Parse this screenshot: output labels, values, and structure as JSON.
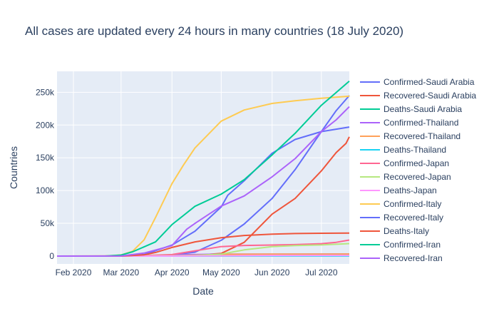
{
  "chart_data": {
    "type": "line",
    "title": "All cases are updated every 24 hours in many countries (18 July 2020)",
    "xlabel": "Date",
    "ylabel": "Countries",
    "xlim": [
      "2020-01-22",
      "2020-07-18"
    ],
    "ylim": [
      -12000,
      282000
    ],
    "x_ticks": [
      {
        "date": "2020-02-01",
        "label": "Feb 2020"
      },
      {
        "date": "2020-03-01",
        "label": "Mar 2020"
      },
      {
        "date": "2020-04-01",
        "label": "Apr 2020"
      },
      {
        "date": "2020-05-01",
        "label": "May 2020"
      },
      {
        "date": "2020-06-01",
        "label": "Jun 2020"
      },
      {
        "date": "2020-07-01",
        "label": "Jul 2020"
      }
    ],
    "y_ticks": [
      {
        "value": 0,
        "label": "0"
      },
      {
        "value": 50000,
        "label": "50k"
      },
      {
        "value": 100000,
        "label": "100k"
      },
      {
        "value": 150000,
        "label": "150k"
      },
      {
        "value": 200000,
        "label": "200k"
      },
      {
        "value": 250000,
        "label": "250k"
      }
    ],
    "grid": true,
    "legend_position": "right",
    "series": [
      {
        "name": "Confirmed-Saudi Arabia",
        "color": "#636efa",
        "points": [
          [
            "2020-01-22",
            0
          ],
          [
            "2020-03-01",
            0
          ],
          [
            "2020-03-15",
            100
          ],
          [
            "2020-04-01",
            1700
          ],
          [
            "2020-04-15",
            6000
          ],
          [
            "2020-05-01",
            24000
          ],
          [
            "2020-05-15",
            49000
          ],
          [
            "2020-06-01",
            88000
          ],
          [
            "2020-06-15",
            132000
          ],
          [
            "2020-07-01",
            190000
          ],
          [
            "2020-07-10",
            222000
          ],
          [
            "2020-07-18",
            245000
          ]
        ]
      },
      {
        "name": "Recovered-Saudi Arabia",
        "color": "#ef553b",
        "points": [
          [
            "2020-01-22",
            0
          ],
          [
            "2020-03-10",
            0
          ],
          [
            "2020-04-01",
            300
          ],
          [
            "2020-04-15",
            1100
          ],
          [
            "2020-05-01",
            4000
          ],
          [
            "2020-05-15",
            21000
          ],
          [
            "2020-06-01",
            64000
          ],
          [
            "2020-06-15",
            88000
          ],
          [
            "2020-07-01",
            130000
          ],
          [
            "2020-07-10",
            158000
          ],
          [
            "2020-07-16",
            172000
          ],
          [
            "2020-07-18",
            182000
          ]
        ]
      },
      {
        "name": "Deaths-Saudi Arabia",
        "color": "#00cc96",
        "points": [
          [
            "2020-01-22",
            0
          ],
          [
            "2020-03-20",
            0
          ],
          [
            "2020-04-01",
            20
          ],
          [
            "2020-05-01",
            170
          ],
          [
            "2020-06-01",
            500
          ],
          [
            "2020-07-01",
            1700
          ],
          [
            "2020-07-18",
            2400
          ]
        ]
      },
      {
        "name": "Confirmed-Thailand",
        "color": "#ab63fa",
        "points": [
          [
            "2020-01-22",
            4
          ],
          [
            "2020-03-01",
            40
          ],
          [
            "2020-03-15",
            110
          ],
          [
            "2020-04-01",
            1800
          ],
          [
            "2020-05-01",
            2950
          ],
          [
            "2020-06-01",
            3080
          ],
          [
            "2020-07-01",
            3170
          ],
          [
            "2020-07-18",
            3250
          ]
        ]
      },
      {
        "name": "Recovered-Thailand",
        "color": "#ffa15a",
        "points": [
          [
            "2020-01-22",
            0
          ],
          [
            "2020-03-01",
            30
          ],
          [
            "2020-04-01",
            200
          ],
          [
            "2020-05-01",
            2700
          ],
          [
            "2020-06-01",
            2970
          ],
          [
            "2020-07-01",
            3080
          ],
          [
            "2020-07-18",
            3100
          ]
        ]
      },
      {
        "name": "Deaths-Thailand",
        "color": "#19d3f3",
        "points": [
          [
            "2020-01-22",
            0
          ],
          [
            "2020-03-01",
            1
          ],
          [
            "2020-04-01",
            10
          ],
          [
            "2020-05-01",
            54
          ],
          [
            "2020-06-01",
            57
          ],
          [
            "2020-07-18",
            58
          ]
        ]
      },
      {
        "name": "Confirmed-Japan",
        "color": "#ff6692",
        "points": [
          [
            "2020-01-22",
            2
          ],
          [
            "2020-03-01",
            250
          ],
          [
            "2020-03-15",
            800
          ],
          [
            "2020-04-01",
            2300
          ],
          [
            "2020-04-15",
            8000
          ],
          [
            "2020-05-01",
            14500
          ],
          [
            "2020-05-15",
            16200
          ],
          [
            "2020-06-01",
            16900
          ],
          [
            "2020-06-15",
            17500
          ],
          [
            "2020-07-01",
            18900
          ],
          [
            "2020-07-10",
            21000
          ],
          [
            "2020-07-18",
            24500
          ]
        ]
      },
      {
        "name": "Recovered-Japan",
        "color": "#b6e880",
        "points": [
          [
            "2020-01-22",
            0
          ],
          [
            "2020-03-15",
            150
          ],
          [
            "2020-04-01",
            500
          ],
          [
            "2020-04-15",
            900
          ],
          [
            "2020-05-01",
            3000
          ],
          [
            "2020-05-15",
            9500
          ],
          [
            "2020-06-01",
            14500
          ],
          [
            "2020-06-15",
            16000
          ],
          [
            "2020-07-01",
            17000
          ],
          [
            "2020-07-18",
            19000
          ]
        ]
      },
      {
        "name": "Deaths-Japan",
        "color": "#ff97ff",
        "points": [
          [
            "2020-01-22",
            0
          ],
          [
            "2020-03-01",
            6
          ],
          [
            "2020-04-01",
            60
          ],
          [
            "2020-05-01",
            450
          ],
          [
            "2020-06-01",
            900
          ],
          [
            "2020-07-01",
            975
          ],
          [
            "2020-07-18",
            985
          ]
        ]
      },
      {
        "name": "Confirmed-Italy",
        "color": "#fecb52",
        "points": [
          [
            "2020-01-22",
            0
          ],
          [
            "2020-02-20",
            3
          ],
          [
            "2020-03-01",
            1700
          ],
          [
            "2020-03-08",
            7400
          ],
          [
            "2020-03-15",
            24700
          ],
          [
            "2020-03-22",
            59000
          ],
          [
            "2020-04-01",
            110500
          ],
          [
            "2020-04-08",
            139000
          ],
          [
            "2020-04-15",
            165000
          ],
          [
            "2020-05-01",
            206000
          ],
          [
            "2020-05-15",
            223000
          ],
          [
            "2020-06-01",
            233000
          ],
          [
            "2020-06-15",
            237000
          ],
          [
            "2020-07-01",
            241000
          ],
          [
            "2020-07-18",
            244000
          ]
        ]
      },
      {
        "name": "Recovered-Italy",
        "color": "#636efa",
        "points": [
          [
            "2020-01-22",
            0
          ],
          [
            "2020-03-01",
            80
          ],
          [
            "2020-03-15",
            2300
          ],
          [
            "2020-04-01",
            16800
          ],
          [
            "2020-04-15",
            38000
          ],
          [
            "2020-05-01",
            75000
          ],
          [
            "2020-05-05",
            93000
          ],
          [
            "2020-05-15",
            115000
          ],
          [
            "2020-06-01",
            157000
          ],
          [
            "2020-06-15",
            178000
          ],
          [
            "2020-07-01",
            190000
          ],
          [
            "2020-07-18",
            197000
          ]
        ]
      },
      {
        "name": "Deaths-Italy",
        "color": "#ef553b",
        "points": [
          [
            "2020-01-22",
            0
          ],
          [
            "2020-03-01",
            30
          ],
          [
            "2020-03-15",
            1800
          ],
          [
            "2020-03-22",
            5500
          ],
          [
            "2020-04-01",
            13200
          ],
          [
            "2020-04-15",
            21700
          ],
          [
            "2020-05-01",
            28000
          ],
          [
            "2020-05-15",
            31500
          ],
          [
            "2020-06-01",
            33400
          ],
          [
            "2020-06-15",
            34400
          ],
          [
            "2020-07-01",
            34800
          ],
          [
            "2020-07-18",
            35000
          ]
        ]
      },
      {
        "name": "Confirmed-Iran",
        "color": "#00cc96",
        "points": [
          [
            "2020-01-22",
            0
          ],
          [
            "2020-02-20",
            5
          ],
          [
            "2020-03-01",
            1500
          ],
          [
            "2020-03-08",
            6500
          ],
          [
            "2020-03-15",
            14000
          ],
          [
            "2020-03-22",
            21600
          ],
          [
            "2020-04-01",
            48000
          ],
          [
            "2020-04-15",
            76000
          ],
          [
            "2020-05-01",
            94600
          ],
          [
            "2020-05-15",
            116600
          ],
          [
            "2020-06-01",
            154400
          ],
          [
            "2020-06-15",
            187400
          ],
          [
            "2020-07-01",
            230200
          ],
          [
            "2020-07-18",
            267000
          ]
        ]
      },
      {
        "name": "Recovered-Iran",
        "color": "#ab63fa",
        "points": [
          [
            "2020-01-22",
            0
          ],
          [
            "2020-03-01",
            120
          ],
          [
            "2020-03-15",
            4600
          ],
          [
            "2020-04-01",
            16000
          ],
          [
            "2020-04-10",
            41000
          ],
          [
            "2020-04-15",
            49900
          ],
          [
            "2020-05-01",
            76300
          ],
          [
            "2020-05-15",
            91800
          ],
          [
            "2020-06-01",
            121000
          ],
          [
            "2020-06-15",
            148700
          ],
          [
            "2020-07-01",
            190000
          ],
          [
            "2020-07-10",
            208000
          ],
          [
            "2020-07-18",
            228000
          ]
        ]
      }
    ]
  }
}
